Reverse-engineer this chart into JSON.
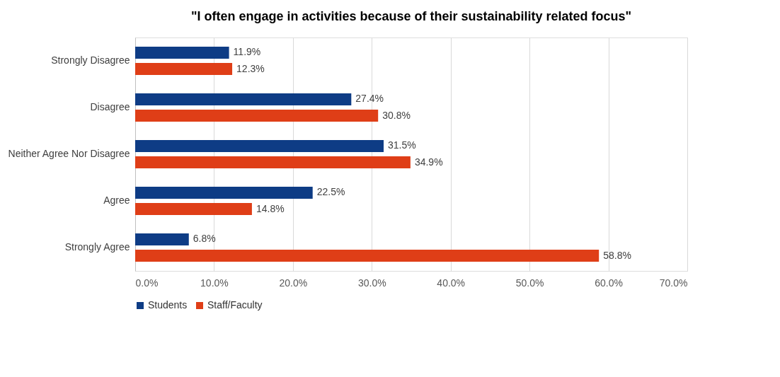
{
  "chart_data": {
    "type": "bar",
    "orientation": "horizontal",
    "title": "\"I often engage in activities because of their sustainability related focus\"",
    "categories": [
      "Strongly Disagree",
      "Disagree",
      "Neither Agree Nor Disagree",
      "Agree",
      "Strongly Agree"
    ],
    "series": [
      {
        "name": "Students",
        "color": "#0e3c85",
        "values": [
          11.9,
          27.4,
          31.5,
          22.5,
          6.8
        ],
        "value_labels": [
          "11.9%",
          "27.4%",
          "31.5%",
          "22.5%",
          "6.8%"
        ]
      },
      {
        "name": "Staff/Faculty",
        "color": "#df3e17",
        "values": [
          12.3,
          30.8,
          34.9,
          14.8,
          58.8
        ],
        "value_labels": [
          "12.3%",
          "30.8%",
          "34.9%",
          "14.8%",
          "58.8%"
        ]
      }
    ],
    "xlim": [
      0,
      70
    ],
    "xticks": [
      {
        "value": 0,
        "label": "0.0%"
      },
      {
        "value": 10,
        "label": "10.0%"
      },
      {
        "value": 20,
        "label": "20.0%"
      },
      {
        "value": 30,
        "label": "30.0%"
      },
      {
        "value": 40,
        "label": "40.0%"
      },
      {
        "value": 50,
        "label": "50.0%"
      },
      {
        "value": 60,
        "label": "60.0%"
      },
      {
        "value": 70,
        "label": "70.0%"
      }
    ],
    "grid": "x",
    "legend": "bottom"
  }
}
